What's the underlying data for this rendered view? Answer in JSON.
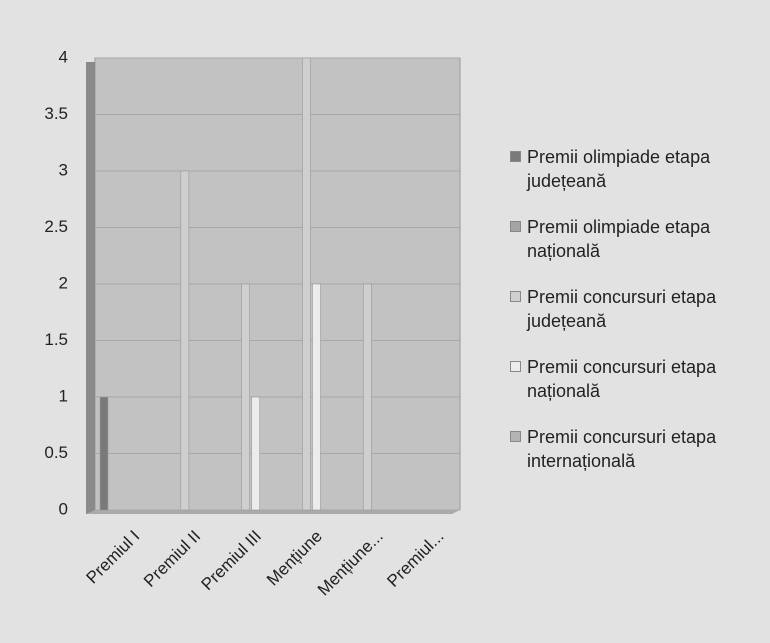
{
  "chart_data": {
    "type": "bar",
    "categories": [
      "Premiul I",
      "Premiul II",
      "Premiul III",
      "Mențiune",
      "Mențiune...",
      "Premiul..."
    ],
    "series": [
      {
        "name": "Premii olimpiade etapa județeană",
        "color": "#7a7a7a",
        "values": [
          1,
          0,
          0,
          0,
          0,
          0
        ]
      },
      {
        "name": "Premii olimpiade etapa națională",
        "color": "#a4a4a4",
        "values": [
          0,
          0,
          0,
          0,
          0,
          0
        ]
      },
      {
        "name": "Premii concursuri etapa județeană",
        "color": "#cfcfcf",
        "values": [
          0,
          3,
          2,
          4,
          2,
          0
        ]
      },
      {
        "name": "Premii concursuri etapa națională",
        "color": "#ececec",
        "values": [
          0,
          0,
          1,
          2,
          0,
          0
        ]
      },
      {
        "name": "Premii concursuri etapa internațională",
        "color": "#b4b4b4",
        "values": [
          0,
          0,
          0,
          0,
          0,
          0
        ]
      }
    ],
    "ylim": [
      0,
      4
    ],
    "yticks": [
      0,
      0.5,
      1,
      1.5,
      2,
      2.5,
      3,
      3.5,
      4
    ],
    "grid": true,
    "legend": "right"
  }
}
